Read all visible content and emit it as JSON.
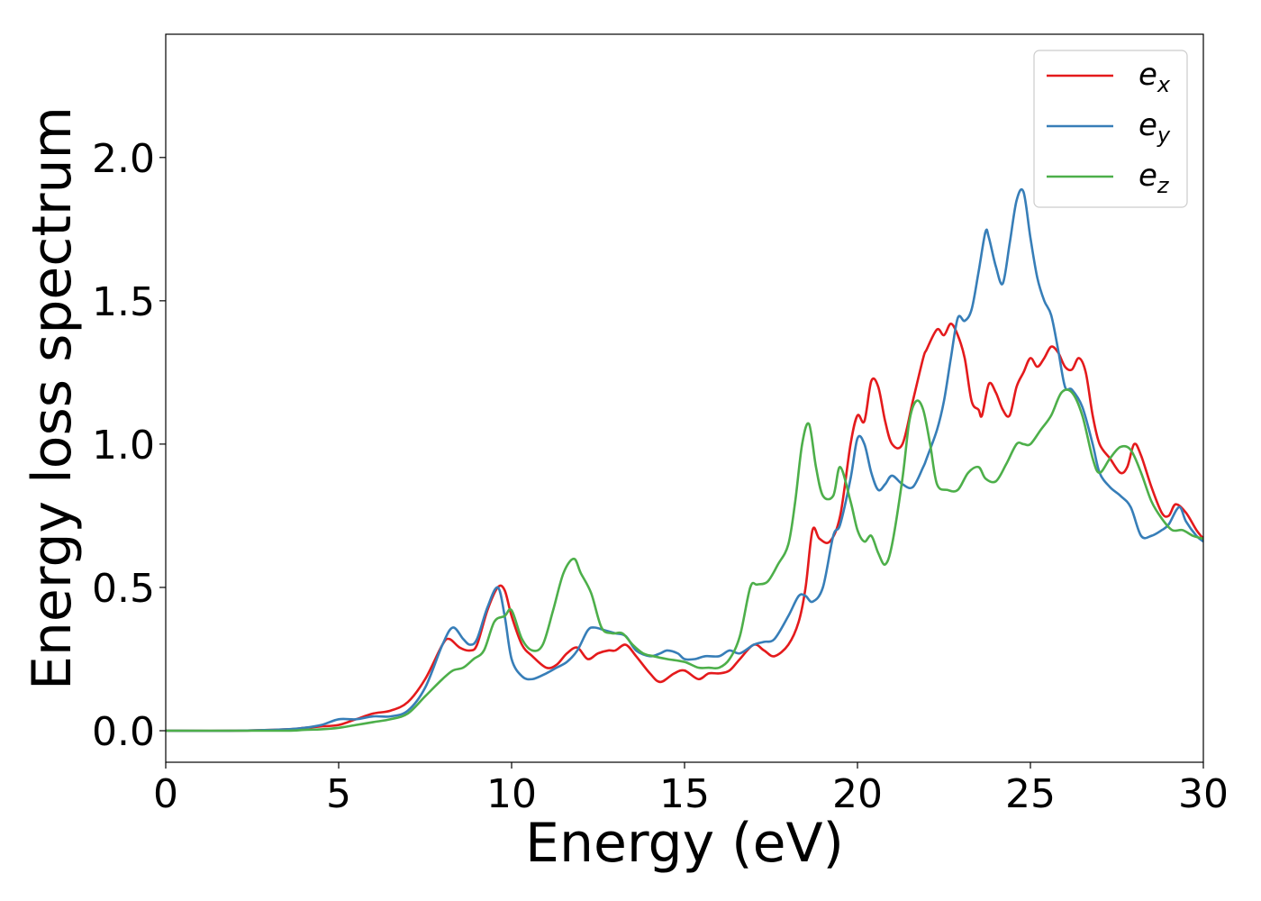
{
  "chart_data": {
    "type": "line",
    "title": "",
    "xlabel": "Energy (eV)",
    "ylabel": "Energy loss spectrum",
    "xlim": [
      0,
      30
    ],
    "ylim": [
      -0.11,
      2.43
    ],
    "xticks": [
      0,
      5,
      10,
      15,
      20,
      25,
      30
    ],
    "yticks": [
      0.0,
      0.5,
      1.0,
      1.5,
      2.0
    ],
    "xtick_labels": [
      "0",
      "5",
      "10",
      "15",
      "20",
      "25",
      "30"
    ],
    "ytick_labels": [
      "0.0",
      "0.5",
      "1.0",
      "1.5",
      "2.0"
    ],
    "grid": false,
    "legend_position": "top-right",
    "series": [
      {
        "name": "e_x",
        "legend_base": "e",
        "legend_sub": "x",
        "color": "#e41a1c",
        "x": [
          0,
          2,
          3.5,
          4.0,
          4.5,
          5.0,
          5.5,
          6.0,
          6.5,
          7.0,
          7.5,
          8.0,
          8.2,
          8.5,
          8.8,
          9.0,
          9.3,
          9.6,
          9.8,
          10.0,
          10.3,
          10.6,
          11.0,
          11.3,
          11.6,
          11.9,
          12.2,
          12.5,
          12.8,
          13.0,
          13.3,
          13.6,
          14.0,
          14.3,
          14.7,
          15.0,
          15.4,
          15.7,
          16.0,
          16.3,
          16.6,
          17.0,
          17.3,
          17.6,
          18.0,
          18.3,
          18.5,
          18.7,
          18.9,
          19.2,
          19.5,
          19.8,
          20.0,
          20.2,
          20.4,
          20.6,
          20.8,
          21.0,
          21.3,
          21.6,
          21.9,
          22.0,
          22.3,
          22.5,
          22.7,
          22.9,
          23.1,
          23.3,
          23.5,
          23.6,
          23.8,
          24.0,
          24.2,
          24.4,
          24.6,
          24.8,
          25.0,
          25.2,
          25.4,
          25.6,
          25.8,
          26.0,
          26.2,
          26.4,
          26.6,
          26.8,
          27.0,
          27.3,
          27.6,
          27.8,
          28.0,
          28.2,
          28.5,
          28.8,
          29.0,
          29.2,
          29.5,
          29.8,
          30.0
        ],
        "y": [
          0.0,
          0.0,
          0.005,
          0.01,
          0.015,
          0.02,
          0.04,
          0.06,
          0.07,
          0.1,
          0.18,
          0.3,
          0.32,
          0.29,
          0.28,
          0.3,
          0.42,
          0.5,
          0.49,
          0.4,
          0.3,
          0.26,
          0.22,
          0.23,
          0.27,
          0.29,
          0.25,
          0.27,
          0.28,
          0.28,
          0.3,
          0.26,
          0.2,
          0.17,
          0.2,
          0.21,
          0.18,
          0.2,
          0.2,
          0.21,
          0.25,
          0.3,
          0.28,
          0.26,
          0.3,
          0.38,
          0.5,
          0.7,
          0.67,
          0.66,
          0.75,
          1.0,
          1.1,
          1.08,
          1.22,
          1.2,
          1.08,
          1.0,
          1.0,
          1.15,
          1.3,
          1.33,
          1.4,
          1.38,
          1.42,
          1.38,
          1.3,
          1.15,
          1.12,
          1.1,
          1.21,
          1.18,
          1.12,
          1.1,
          1.2,
          1.25,
          1.3,
          1.27,
          1.3,
          1.34,
          1.32,
          1.27,
          1.26,
          1.3,
          1.25,
          1.1,
          1.0,
          0.95,
          0.9,
          0.92,
          1.0,
          0.96,
          0.85,
          0.76,
          0.75,
          0.79,
          0.76,
          0.7,
          0.67
        ]
      },
      {
        "name": "e_y",
        "legend_base": "e",
        "legend_sub": "y",
        "color": "#377eb8",
        "x": [
          0,
          2,
          3.5,
          4.0,
          4.5,
          5.0,
          5.5,
          6.0,
          6.5,
          7.0,
          7.5,
          8.0,
          8.3,
          8.6,
          8.8,
          9.0,
          9.3,
          9.6,
          9.8,
          10.0,
          10.3,
          10.6,
          11.0,
          11.3,
          11.6,
          11.9,
          12.2,
          12.4,
          12.7,
          13.0,
          13.3,
          13.6,
          14.0,
          14.3,
          14.5,
          14.8,
          15.0,
          15.3,
          15.6,
          16.0,
          16.3,
          16.6,
          17.0,
          17.3,
          17.6,
          18.0,
          18.3,
          18.5,
          18.7,
          19.0,
          19.3,
          19.5,
          19.8,
          20.0,
          20.2,
          20.4,
          20.6,
          20.8,
          21.0,
          21.3,
          21.6,
          21.9,
          22.0,
          22.3,
          22.5,
          22.7,
          22.9,
          23.1,
          23.3,
          23.5,
          23.7,
          23.8,
          24.0,
          24.2,
          24.4,
          24.6,
          24.8,
          25.0,
          25.2,
          25.4,
          25.6,
          25.8,
          26.0,
          26.2,
          26.5,
          26.8,
          27.0,
          27.3,
          27.6,
          27.9,
          28.2,
          28.5,
          28.8,
          29.0,
          29.3,
          29.5,
          29.8,
          30.0
        ],
        "y": [
          0.0,
          0.0,
          0.005,
          0.01,
          0.02,
          0.04,
          0.04,
          0.05,
          0.05,
          0.07,
          0.15,
          0.3,
          0.36,
          0.32,
          0.3,
          0.32,
          0.43,
          0.5,
          0.4,
          0.25,
          0.19,
          0.18,
          0.2,
          0.22,
          0.24,
          0.28,
          0.35,
          0.36,
          0.35,
          0.34,
          0.33,
          0.28,
          0.26,
          0.27,
          0.28,
          0.27,
          0.25,
          0.25,
          0.26,
          0.26,
          0.28,
          0.27,
          0.3,
          0.31,
          0.32,
          0.4,
          0.47,
          0.47,
          0.45,
          0.5,
          0.68,
          0.72,
          0.88,
          1.02,
          1.0,
          0.9,
          0.84,
          0.86,
          0.89,
          0.86,
          0.85,
          0.92,
          0.95,
          1.05,
          1.15,
          1.3,
          1.44,
          1.43,
          1.47,
          1.6,
          1.74,
          1.72,
          1.62,
          1.56,
          1.7,
          1.85,
          1.88,
          1.72,
          1.58,
          1.5,
          1.45,
          1.33,
          1.2,
          1.19,
          1.13,
          1.0,
          0.9,
          0.85,
          0.82,
          0.78,
          0.68,
          0.68,
          0.7,
          0.72,
          0.78,
          0.73,
          0.68,
          0.66
        ]
      },
      {
        "name": "e_z",
        "legend_base": "e",
        "legend_sub": "z",
        "color": "#4daf4a",
        "x": [
          0,
          2,
          3.5,
          4.0,
          4.5,
          5.0,
          5.5,
          6.0,
          6.5,
          7.0,
          7.5,
          8.0,
          8.3,
          8.6,
          8.9,
          9.2,
          9.5,
          9.8,
          10.0,
          10.3,
          10.6,
          10.9,
          11.2,
          11.5,
          11.8,
          12.0,
          12.3,
          12.6,
          12.9,
          13.2,
          13.5,
          13.8,
          14.1,
          14.5,
          15.0,
          15.4,
          15.7,
          16.0,
          16.3,
          16.6,
          16.9,
          17.1,
          17.4,
          17.7,
          18.0,
          18.2,
          18.4,
          18.6,
          18.8,
          19.0,
          19.3,
          19.5,
          19.8,
          20.0,
          20.2,
          20.4,
          20.6,
          20.8,
          21.0,
          21.3,
          21.5,
          21.7,
          21.9,
          22.1,
          22.3,
          22.6,
          22.9,
          23.2,
          23.5,
          23.7,
          24.0,
          24.3,
          24.6,
          24.8,
          25.0,
          25.3,
          25.6,
          25.9,
          26.2,
          26.5,
          26.8,
          27.0,
          27.3,
          27.6,
          27.9,
          28.2,
          28.5,
          28.8,
          29.1,
          29.4,
          29.7,
          30.0
        ],
        "y": [
          0.0,
          0.0,
          0.0,
          0.003,
          0.005,
          0.01,
          0.02,
          0.03,
          0.04,
          0.06,
          0.12,
          0.18,
          0.21,
          0.22,
          0.25,
          0.28,
          0.38,
          0.4,
          0.42,
          0.32,
          0.28,
          0.3,
          0.42,
          0.55,
          0.6,
          0.55,
          0.48,
          0.36,
          0.34,
          0.34,
          0.3,
          0.27,
          0.26,
          0.25,
          0.24,
          0.22,
          0.22,
          0.22,
          0.25,
          0.33,
          0.5,
          0.51,
          0.52,
          0.58,
          0.65,
          0.8,
          1.0,
          1.07,
          0.92,
          0.82,
          0.82,
          0.92,
          0.8,
          0.7,
          0.66,
          0.68,
          0.62,
          0.58,
          0.65,
          0.88,
          1.08,
          1.15,
          1.12,
          1.0,
          0.86,
          0.84,
          0.84,
          0.9,
          0.92,
          0.88,
          0.87,
          0.93,
          1.0,
          1.0,
          1.0,
          1.05,
          1.1,
          1.18,
          1.18,
          1.1,
          0.95,
          0.9,
          0.95,
          0.99,
          0.98,
          0.9,
          0.8,
          0.74,
          0.7,
          0.7,
          0.68,
          0.67
        ]
      }
    ]
  }
}
